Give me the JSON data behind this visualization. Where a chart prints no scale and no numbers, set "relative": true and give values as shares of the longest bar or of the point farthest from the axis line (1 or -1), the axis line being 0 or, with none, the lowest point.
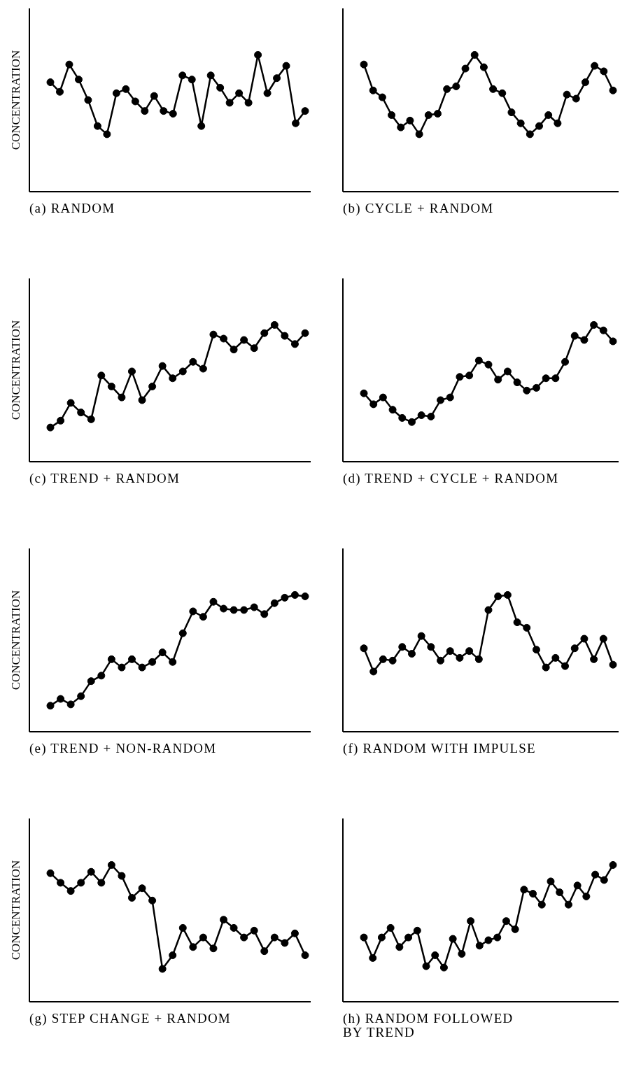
{
  "chart_data": [
    {
      "type": "line",
      "relative": true,
      "xlabel": "(a) RANDOM",
      "ylabel": "CONCENTRATION",
      "marker": "circle",
      "color": "#000000",
      "categories": [
        null,
        null,
        null,
        null,
        null,
        null,
        null,
        null,
        null,
        null,
        null,
        null,
        null,
        null,
        null,
        null,
        null,
        null,
        null,
        null,
        null,
        null,
        null,
        null,
        null,
        null,
        null,
        null
      ],
      "values": [
        0.8,
        0.73,
        0.93,
        0.82,
        0.67,
        0.48,
        0.42,
        0.72,
        0.75,
        0.66,
        0.59,
        0.7,
        0.59,
        0.57,
        0.85,
        0.82,
        0.48,
        0.85,
        0.76,
        0.65,
        0.72,
        0.65,
        1,
        0.72,
        0.83,
        0.92,
        0.5,
        0.59
      ]
    },
    {
      "type": "line",
      "relative": true,
      "xlabel": "(b) CYCLE + RANDOM",
      "marker": "circle",
      "color": "#000000",
      "categories": [
        null,
        null,
        null,
        null,
        null,
        null,
        null,
        null,
        null,
        null,
        null,
        null,
        null,
        null,
        null,
        null,
        null,
        null,
        null,
        null,
        null,
        null,
        null,
        null,
        null,
        null,
        null,
        null
      ],
      "values": [
        0.93,
        0.74,
        0.69,
        0.56,
        0.47,
        0.52,
        0.42,
        0.56,
        0.57,
        0.75,
        0.77,
        0.9,
        1,
        0.91,
        0.75,
        0.72,
        0.58,
        0.5,
        0.42,
        0.48,
        0.56,
        0.5,
        0.71,
        0.68,
        0.8,
        0.92,
        0.88,
        0.74
      ]
    },
    {
      "type": "line",
      "relative": true,
      "xlabel": "(c) TREND + RANDOM",
      "ylabel": "CONCENTRATION",
      "marker": "circle",
      "color": "#000000",
      "categories": [
        null,
        null,
        null,
        null,
        null,
        null,
        null,
        null,
        null,
        null,
        null,
        null,
        null,
        null,
        null,
        null,
        null,
        null,
        null,
        null,
        null,
        null,
        null,
        null,
        null,
        null
      ],
      "values": [
        0.25,
        0.3,
        0.43,
        0.36,
        0.31,
        0.63,
        0.55,
        0.47,
        0.66,
        0.45,
        0.55,
        0.7,
        0.61,
        0.66,
        0.73,
        0.68,
        0.93,
        0.9,
        0.82,
        0.89,
        0.83,
        0.94,
        1,
        0.92,
        0.86,
        0.94
      ]
    },
    {
      "type": "line",
      "relative": true,
      "xlabel": "(d) TREND + CYCLE + RANDOM",
      "marker": "circle",
      "color": "#000000",
      "categories": [
        null,
        null,
        null,
        null,
        null,
        null,
        null,
        null,
        null,
        null,
        null,
        null,
        null,
        null,
        null,
        null,
        null,
        null,
        null,
        null,
        null,
        null,
        null,
        null,
        null,
        null,
        null
      ],
      "values": [
        0.5,
        0.42,
        0.47,
        0.38,
        0.32,
        0.29,
        0.34,
        0.33,
        0.45,
        0.47,
        0.62,
        0.63,
        0.74,
        0.71,
        0.6,
        0.66,
        0.58,
        0.52,
        0.54,
        0.61,
        0.61,
        0.73,
        0.92,
        0.89,
        1,
        0.96,
        0.88
      ]
    },
    {
      "type": "line",
      "relative": true,
      "xlabel": "(e) TREND + NON-RANDOM",
      "ylabel": "CONCENTRATION",
      "marker": "circle",
      "color": "#000000",
      "categories": [
        null,
        null,
        null,
        null,
        null,
        null,
        null,
        null,
        null,
        null,
        null,
        null,
        null,
        null,
        null,
        null,
        null,
        null,
        null,
        null,
        null,
        null,
        null,
        null,
        null,
        null
      ],
      "values": [
        0.19,
        0.24,
        0.2,
        0.26,
        0.37,
        0.41,
        0.53,
        0.47,
        0.53,
        0.47,
        0.51,
        0.58,
        0.51,
        0.72,
        0.88,
        0.84,
        0.95,
        0.9,
        0.89,
        0.89,
        0.91,
        0.86,
        0.94,
        0.98,
        1,
        0.99
      ]
    },
    {
      "type": "line",
      "relative": true,
      "xlabel": "(f) RANDOM WITH IMPULSE",
      "marker": "circle",
      "color": "#000000",
      "categories": [
        null,
        null,
        null,
        null,
        null,
        null,
        null,
        null,
        null,
        null,
        null,
        null,
        null,
        null,
        null,
        null,
        null,
        null,
        null,
        null,
        null,
        null,
        null,
        null,
        null,
        null,
        null
      ],
      "values": [
        0.61,
        0.44,
        0.53,
        0.52,
        0.62,
        0.57,
        0.7,
        0.62,
        0.52,
        0.59,
        0.54,
        0.59,
        0.53,
        0.89,
        0.99,
        1,
        0.8,
        0.76,
        0.6,
        0.47,
        0.54,
        0.48,
        0.61,
        0.68,
        0.53,
        0.68,
        0.49
      ]
    },
    {
      "type": "line",
      "relative": true,
      "xlabel": "(g) STEP CHANGE + RANDOM",
      "ylabel": "CONCENTRATION",
      "marker": "circle",
      "color": "#000000",
      "categories": [
        null,
        null,
        null,
        null,
        null,
        null,
        null,
        null,
        null,
        null,
        null,
        null,
        null,
        null,
        null,
        null,
        null,
        null,
        null,
        null,
        null,
        null,
        null,
        null,
        null,
        null
      ],
      "values": [
        0.94,
        0.87,
        0.81,
        0.87,
        0.95,
        0.87,
        1,
        0.92,
        0.76,
        0.83,
        0.74,
        0.24,
        0.34,
        0.54,
        0.4,
        0.47,
        0.39,
        0.6,
        0.54,
        0.47,
        0.52,
        0.37,
        0.47,
        0.43,
        0.5,
        0.34
      ]
    },
    {
      "type": "line",
      "relative": true,
      "xlabel": "(h) RANDOM FOLLOWED\nBY TREND",
      "marker": "circle",
      "color": "#000000",
      "categories": [
        null,
        null,
        null,
        null,
        null,
        null,
        null,
        null,
        null,
        null,
        null,
        null,
        null,
        null,
        null,
        null,
        null,
        null,
        null,
        null,
        null,
        null,
        null,
        null,
        null,
        null,
        null,
        null,
        null
      ],
      "values": [
        0.47,
        0.32,
        0.47,
        0.54,
        0.4,
        0.47,
        0.52,
        0.26,
        0.34,
        0.25,
        0.46,
        0.35,
        0.59,
        0.41,
        0.45,
        0.47,
        0.59,
        0.53,
        0.82,
        0.79,
        0.71,
        0.88,
        0.8,
        0.71,
        0.85,
        0.77,
        0.93,
        0.89,
        1
      ]
    }
  ]
}
